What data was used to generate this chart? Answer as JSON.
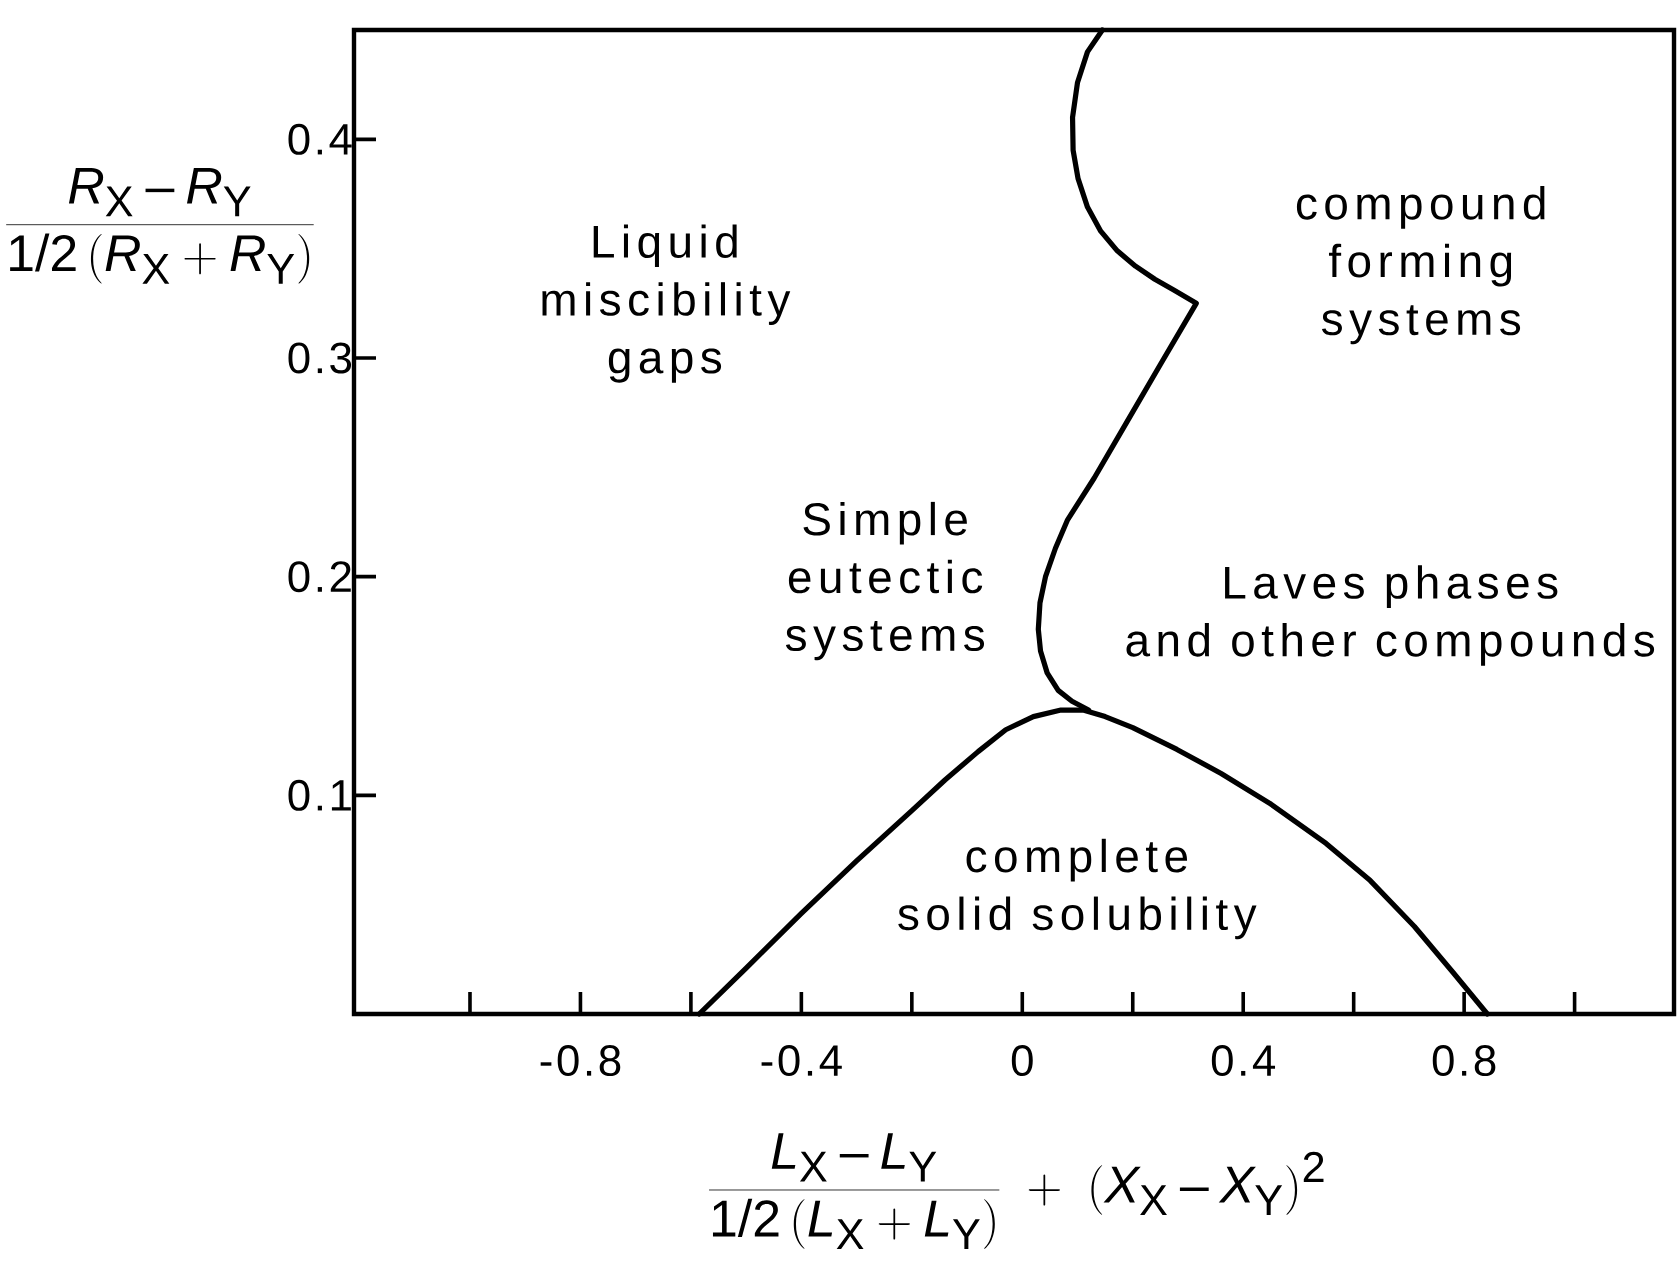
{
  "chart_data": {
    "type": "line",
    "xlabel": "\\frac{L_{\\mathrm{X}}-L_{\\mathrm{Y}}}{\\mathrm{1/2}\\,(L_{\\mathrm{X}}+L_{\\mathrm{Y}})}\\;+\\;(X_{\\mathrm{X}}-X_{\\mathrm{Y}})^{\\mathrm{2}}",
    "ylabel": "\\frac{R_{\\mathrm{X}}-R_{\\mathrm{Y}}}{\\mathrm{1/2}\\,(R_{\\mathrm{X}}+R_{\\mathrm{Y}})}",
    "xlim": [
      -1.21,
      1.18
    ],
    "ylim": [
      0,
      0.45
    ],
    "xticks": [
      {
        "value": -1.0,
        "label": null
      },
      -0.8,
      {
        "value": -0.6,
        "label": null
      },
      -0.4,
      {
        "value": -0.2,
        "label": null
      },
      0,
      {
        "value": 0.2,
        "label": null
      },
      0.4,
      {
        "value": 0.6,
        "label": null
      },
      0.8,
      {
        "value": 1.0,
        "label": null
      }
    ],
    "yticks": [
      0.1,
      0.2,
      0.3,
      0.4
    ],
    "series": [
      {
        "color": "#000000",
        "x": [
          0.145,
          0.118,
          0.1,
          0.091,
          0.092,
          0.101,
          0.118,
          0.142,
          0.172,
          0.205,
          0.24,
          0.275,
          0.315,
          0.25,
          0.19,
          0.13,
          0.082,
          0.06,
          0.042,
          0.032,
          0.029,
          0.033,
          0.045,
          0.065,
          0.09,
          0.12
        ],
        "values": [
          0.45,
          0.44,
          0.426,
          0.41,
          0.395,
          0.382,
          0.369,
          0.358,
          0.349,
          0.342,
          0.336,
          0.331,
          0.325,
          0.297,
          0.271,
          0.245,
          0.226,
          0.213,
          0.2,
          0.188,
          0.176,
          0.166,
          0.156,
          0.148,
          0.143,
          0.139
        ]
      },
      {
        "color": "#000000",
        "x": [
          -0.585,
          -0.5,
          -0.4,
          -0.3,
          -0.2,
          -0.14,
          -0.08,
          -0.03,
          0.02,
          0.07,
          0.11,
          0.15,
          0.2,
          0.28,
          0.36,
          0.45,
          0.55,
          0.63,
          0.71,
          0.78,
          0.842
        ],
        "values": [
          0,
          0.021,
          0.046,
          0.07,
          0.093,
          0.107,
          0.12,
          0.13,
          0.136,
          0.139,
          0.139,
          0.136,
          0.131,
          0.121,
          0.11,
          0.096,
          0.078,
          0.061,
          0.04,
          0.019,
          0
        ]
      }
    ],
    "annotations": [
      "Liquid miscibility gaps",
      "compound forming systems",
      "Simple eutectic systems",
      "Laves phases and other compounds",
      "complete solid solubility"
    ]
  }
}
